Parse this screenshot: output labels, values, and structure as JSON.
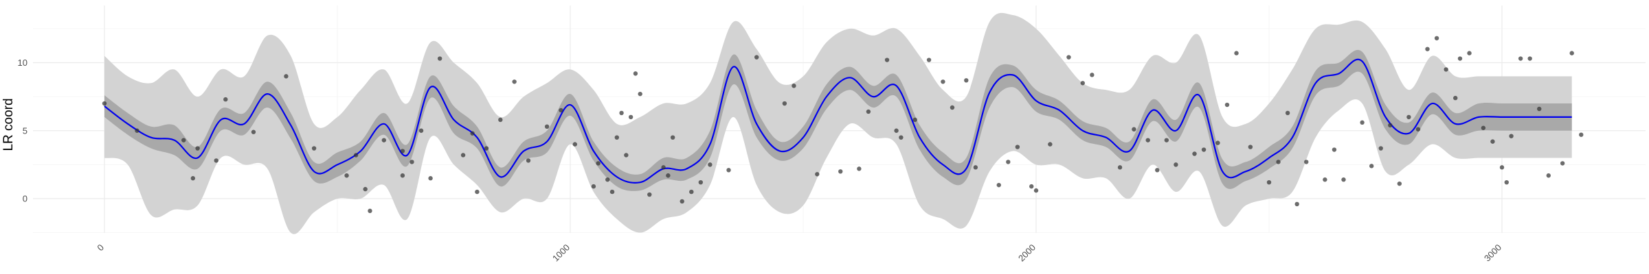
{
  "chart_data": {
    "type": "line",
    "title": "",
    "xlabel": "",
    "ylabel": "LR coord",
    "xlim": [
      -150,
      3400
    ],
    "ylim": [
      -2.5,
      14.5
    ],
    "x_ticks": [
      0,
      1000,
      2000,
      3000
    ],
    "y_ticks": [
      0,
      5,
      10
    ],
    "grid": true,
    "legend": "none",
    "colors": {
      "line": "#0000ee",
      "outer_band": "#d3d3d3",
      "inner_band": "#a9a9a9",
      "points": "#333333"
    },
    "series": [
      {
        "kind": "mean",
        "x": [
          0,
          50,
          100,
          150,
          200,
          250,
          300,
          350,
          400,
          450,
          500,
          550,
          600,
          650,
          700,
          750,
          800,
          850,
          900,
          950,
          1000,
          1050,
          1100,
          1150,
          1200,
          1250,
          1300,
          1350,
          1400,
          1450,
          1500,
          1550,
          1600,
          1650,
          1700,
          1750,
          1800,
          1850,
          1900,
          1950,
          2000,
          2050,
          2100,
          2150,
          2200,
          2250,
          2300,
          2350,
          2400,
          2450,
          2500,
          2550,
          2600,
          2650,
          2700,
          2750,
          2800,
          2850,
          2900,
          2950,
          3000,
          3050,
          3100,
          3150
        ],
        "y": [
          6.8,
          5.5,
          4.5,
          4.3,
          3.0,
          5.8,
          5.5,
          7.7,
          5.4,
          2.0,
          2.5,
          3.5,
          5.5,
          3.2,
          8.2,
          5.8,
          4.5,
          1.6,
          3.5,
          4.2,
          6.9,
          3.5,
          1.6,
          1.2,
          2.2,
          2.2,
          4.0,
          9.7,
          5.5,
          3.5,
          4.5,
          7.5,
          8.9,
          7.5,
          8.3,
          4.5,
          2.5,
          2.2,
          7.8,
          9.1,
          7.2,
          6.5,
          5.0,
          4.5,
          3.5,
          6.5,
          5.0,
          7.6,
          2.0,
          2.0,
          3.0,
          4.5,
          8.5,
          9.2,
          10.1,
          6.0,
          4.8,
          7.0,
          5.5,
          6.0,
          6.0,
          6.0,
          6.0,
          6.0
        ]
      },
      {
        "kind": "inner_band",
        "lower": [
          6.0,
          4.7,
          3.7,
          3.2,
          2.2,
          5.0,
          4.7,
          6.7,
          4.4,
          1.3,
          1.6,
          2.8,
          4.7,
          2.4,
          7.4,
          4.8,
          3.7,
          0.9,
          2.8,
          3.4,
          6.1,
          2.8,
          0.9,
          0.6,
          1.4,
          1.4,
          3.0,
          8.4,
          4.5,
          2.8,
          3.7,
          6.6,
          8.0,
          6.7,
          7.5,
          3.6,
          1.6,
          1.4,
          6.7,
          8.2,
          6.4,
          5.8,
          4.3,
          3.8,
          2.8,
          5.7,
          4.2,
          6.7,
          1.1,
          1.3,
          2.2,
          3.7,
          7.6,
          8.3,
          9.2,
          5.1,
          4.0,
          6.2,
          4.7,
          5.0,
          5.0,
          5.0,
          5.0,
          5.0
        ],
        "upper": [
          7.6,
          6.3,
          5.3,
          5.4,
          3.8,
          6.6,
          6.3,
          8.6,
          6.3,
          2.7,
          3.4,
          4.2,
          6.3,
          4.0,
          9.0,
          6.8,
          5.3,
          2.3,
          4.2,
          5.0,
          7.7,
          4.2,
          2.3,
          1.8,
          3.0,
          3.0,
          5.0,
          10.6,
          6.5,
          4.2,
          5.3,
          8.4,
          9.7,
          8.3,
          9.1,
          5.4,
          3.4,
          3.0,
          8.9,
          9.8,
          8.0,
          7.2,
          5.7,
          5.2,
          4.2,
          7.3,
          5.8,
          8.5,
          2.9,
          2.7,
          3.8,
          5.3,
          9.4,
          10.0,
          10.8,
          6.9,
          5.6,
          7.8,
          6.3,
          7.0,
          7.0,
          7.0,
          7.0,
          7.0
        ]
      },
      {
        "kind": "outer_band",
        "lower": [
          3.0,
          2.5,
          -1.2,
          -0.8,
          -0.5,
          3.0,
          2.5,
          2.2,
          -2.5,
          -1.0,
          0.0,
          0.0,
          1.0,
          -1.5,
          4.5,
          2.5,
          1.0,
          -1.0,
          0.0,
          0.0,
          4.0,
          0.5,
          -1.5,
          -2.5,
          -1.5,
          -1.0,
          1.0,
          6.0,
          1.0,
          -1.0,
          -0.5,
          3.0,
          5.5,
          4.5,
          4.0,
          -0.5,
          -1.5,
          -2.0,
          2.0,
          3.5,
          2.5,
          2.5,
          1.5,
          1.5,
          0.0,
          2.5,
          0.5,
          2.0,
          -2.0,
          -0.5,
          0.0,
          0.5,
          4.5,
          6.5,
          7.0,
          2.0,
          2.5,
          4.0,
          3.0,
          3.0,
          3.0,
          3.0,
          3.0,
          3.0
        ],
        "upper": [
          10.5,
          9.0,
          8.5,
          9.5,
          7.5,
          9.5,
          9.0,
          12.0,
          10.5,
          5.5,
          6.0,
          8.0,
          9.5,
          7.0,
          11.5,
          10.0,
          8.5,
          6.0,
          7.5,
          8.5,
          9.5,
          8.0,
          5.5,
          6.0,
          7.0,
          7.0,
          8.5,
          13.0,
          11.0,
          8.5,
          9.0,
          11.5,
          12.5,
          12.0,
          12.5,
          10.5,
          8.0,
          7.5,
          13.0,
          13.5,
          12.5,
          10.5,
          8.5,
          8.0,
          8.0,
          10.5,
          10.0,
          12.0,
          6.0,
          5.5,
          7.0,
          9.5,
          12.5,
          12.8,
          13.0,
          11.0,
          8.0,
          10.5,
          9.0,
          9.0,
          9.0,
          9.0,
          9.0,
          9.0
        ]
      },
      {
        "kind": "points",
        "x": [
          0,
          70,
          170,
          190,
          200,
          240,
          260,
          320,
          390,
          450,
          520,
          540,
          560,
          570,
          600,
          640,
          640,
          660,
          680,
          700,
          720,
          770,
          790,
          800,
          820,
          850,
          880,
          910,
          950,
          980,
          1010,
          1050,
          1060,
          1080,
          1090,
          1100,
          1110,
          1120,
          1130,
          1140,
          1150,
          1170,
          1200,
          1210,
          1220,
          1240,
          1260,
          1280,
          1300,
          1340,
          1400,
          1460,
          1480,
          1530,
          1580,
          1620,
          1640,
          1680,
          1700,
          1710,
          1740,
          1770,
          1800,
          1820,
          1850,
          1870,
          1920,
          1940,
          1960,
          1990,
          2000,
          2030,
          2070,
          2100,
          2120,
          2180,
          2210,
          2240,
          2260,
          2280,
          2300,
          2340,
          2360,
          2390,
          2410,
          2430,
          2460,
          2500,
          2520,
          2540,
          2560,
          2580,
          2620,
          2640,
          2660,
          2700,
          2720,
          2740,
          2760,
          2780,
          2800,
          2820,
          2840,
          2860,
          2880,
          2900,
          2910,
          2930,
          2960,
          2980,
          3000,
          3010,
          3020,
          3040,
          3060,
          3080,
          3100,
          3130,
          3150,
          3170
        ],
        "y": [
          7.0,
          5.0,
          4.3,
          1.5,
          3.7,
          2.8,
          7.3,
          4.9,
          9.0,
          3.7,
          1.7,
          3.2,
          0.7,
          -0.9,
          4.3,
          3.5,
          1.7,
          2.7,
          5.0,
          1.5,
          10.3,
          3.2,
          4.8,
          0.5,
          3.7,
          5.8,
          8.6,
          2.8,
          5.3,
          6.5,
          4.0,
          0.9,
          2.6,
          1.4,
          0.5,
          4.5,
          6.3,
          3.2,
          6.0,
          9.2,
          7.7,
          0.3,
          2.3,
          1.7,
          4.5,
          -0.2,
          0.5,
          1.2,
          2.5,
          2.1,
          10.4,
          7.0,
          8.3,
          1.8,
          2.0,
          2.2,
          6.4,
          10.2,
          5.0,
          4.5,
          5.8,
          10.2,
          8.6,
          6.7,
          8.7,
          2.3,
          1.0,
          2.7,
          3.8,
          0.9,
          0.6,
          4.0,
          10.4,
          8.5,
          9.1,
          2.3,
          5.1,
          4.3,
          2.1,
          4.3,
          2.5,
          3.3,
          3.6,
          4.1,
          6.9,
          10.7,
          3.8,
          1.2,
          2.7,
          6.3,
          -0.4,
          2.7,
          1.4,
          3.6,
          1.4,
          5.6,
          2.4,
          3.7,
          5.4,
          1.1,
          6.0,
          5.1,
          11.0,
          11.8,
          9.5,
          7.4,
          10.3,
          10.7,
          5.2,
          4.2,
          2.3,
          1.2,
          4.6,
          10.3,
          10.3,
          6.6,
          1.7,
          2.6,
          10.7,
          4.7
        ]
      }
    ]
  }
}
